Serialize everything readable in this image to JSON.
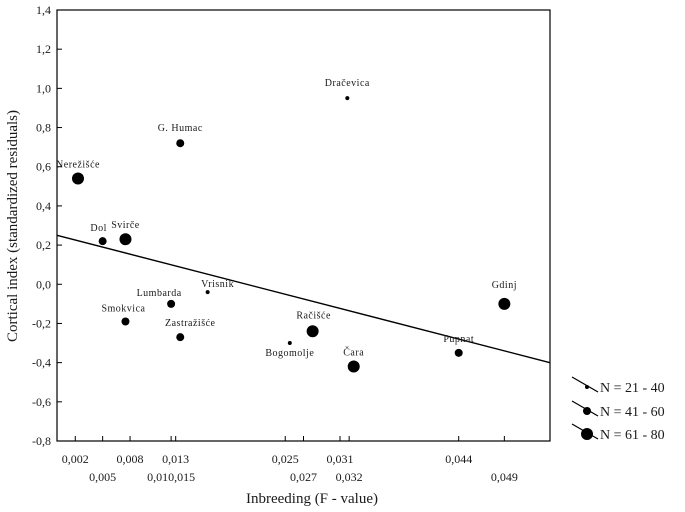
{
  "chart_data": {
    "type": "scatter",
    "xlabel": "Inbreeding (F - value)",
    "ylabel": "Cortical index (standardized residuals)",
    "ylim": [
      -0.8,
      1.4
    ],
    "xlim": [
      0.0,
      0.054
    ],
    "y_ticks": [
      "1,4",
      "1,2",
      "1,0",
      "0,8",
      "0,6",
      "0,4",
      "0,2",
      "0,0",
      "-0,2",
      "-0,4",
      "-0,6",
      "-0,8"
    ],
    "x_ticks_upper": [
      {
        "value": 0.002,
        "label": "0,002"
      },
      {
        "value": 0.008,
        "label": "0,008"
      },
      {
        "value": 0.013,
        "label": "0,013"
      },
      {
        "value": 0.025,
        "label": "0,025"
      },
      {
        "value": 0.031,
        "label": "0,031"
      },
      {
        "value": 0.044,
        "label": "0,044"
      }
    ],
    "x_ticks_lower": [
      {
        "value": 0.005,
        "label": "0,005"
      },
      {
        "value": 0.0125,
        "label": "0,010,015"
      },
      {
        "value": 0.027,
        "label": "0,027"
      },
      {
        "value": 0.032,
        "label": "0,032"
      },
      {
        "value": 0.049,
        "label": "0,049"
      }
    ],
    "points": [
      {
        "label": "Dračevica",
        "x": 0.0318,
        "y": 0.95,
        "size": "small"
      },
      {
        "label": "G. Humac",
        "x": 0.0135,
        "y": 0.72,
        "size": "medium"
      },
      {
        "label": "Nerežišće",
        "x": 0.0023,
        "y": 0.54,
        "size": "large"
      },
      {
        "label": "Dol",
        "x": 0.005,
        "y": 0.22,
        "size": "medium"
      },
      {
        "label": "Svirče",
        "x": 0.0075,
        "y": 0.23,
        "size": "large"
      },
      {
        "label": "Vrisnik",
        "x": 0.0165,
        "y": -0.04,
        "size": "small"
      },
      {
        "label": "Lumbarda",
        "x": 0.0125,
        "y": -0.1,
        "size": "medium"
      },
      {
        "label": "Smokvica",
        "x": 0.0075,
        "y": -0.19,
        "size": "medium"
      },
      {
        "label": "Zastražišće",
        "x": 0.0135,
        "y": -0.27,
        "size": "medium"
      },
      {
        "label": "Račišće",
        "x": 0.028,
        "y": -0.24,
        "size": "large"
      },
      {
        "label": "Bogomolje",
        "x": 0.0255,
        "y": -0.3,
        "size": "small"
      },
      {
        "label": "Čara",
        "x": 0.0325,
        "y": -0.42,
        "size": "large"
      },
      {
        "label": "Pupnat",
        "x": 0.044,
        "y": -0.35,
        "size": "medium"
      },
      {
        "label": "Gdinj",
        "x": 0.049,
        "y": -0.1,
        "size": "large"
      }
    ],
    "regression_line": {
      "x": [
        0.0,
        0.054
      ],
      "y": [
        0.25,
        -0.4
      ]
    },
    "legend": {
      "placement": "right",
      "entries": [
        {
          "size": "small",
          "label": "N = 21 - 40"
        },
        {
          "size": "medium",
          "label": "N = 41 - 60"
        },
        {
          "size": "large",
          "label": "N = 61 - 80"
        }
      ]
    }
  },
  "colors": {
    "marker": "#000000",
    "line": "#000000",
    "text": "#1a1a1a"
  }
}
